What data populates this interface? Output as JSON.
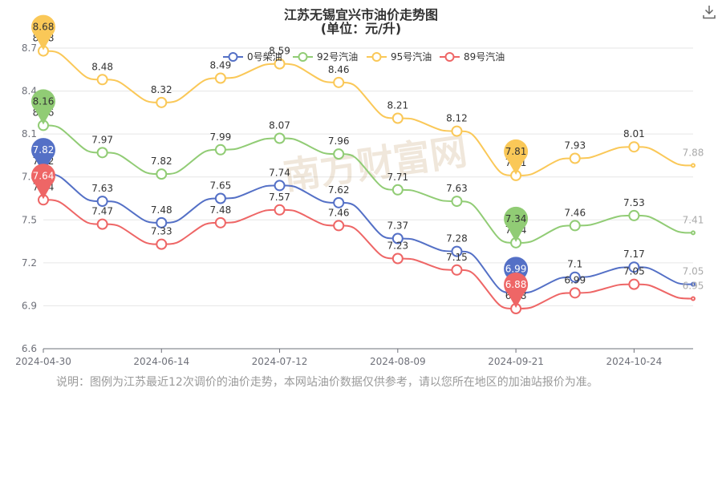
{
  "chart_data": {
    "type": "line",
    "title": "江苏无锡宜兴市油价走势图",
    "subtitle": "(单位：元/升)",
    "ylim": [
      6.6,
      8.7
    ],
    "yticks": [
      "6.6",
      "6.9",
      "7.2",
      "7.5",
      "7.8",
      "8.1",
      "8.4",
      "8.7"
    ],
    "xtick_labels": [
      "2024-04-30",
      "2024-06-14",
      "2024-07-12",
      "2024-08-09",
      "2024-09-21",
      "2024-10-24"
    ],
    "xtick_index": [
      0,
      2,
      4,
      6,
      8,
      10
    ],
    "grid": true,
    "legend_position": "top",
    "series": [
      {
        "name": "0号柴油",
        "color": "#5470c6",
        "values": [
          7.82,
          7.63,
          7.48,
          7.65,
          7.74,
          7.62,
          7.37,
          7.28,
          6.99,
          7.1,
          7.17,
          7.05
        ],
        "max": 7.82,
        "min": 6.99
      },
      {
        "name": "92号汽油",
        "color": "#91cc75",
        "values": [
          8.16,
          7.97,
          7.82,
          7.99,
          8.07,
          7.96,
          7.71,
          7.63,
          7.34,
          7.46,
          7.53,
          7.41
        ],
        "max": 8.16,
        "min": 7.34
      },
      {
        "name": "95号汽油",
        "color": "#fac858",
        "values": [
          8.68,
          8.48,
          8.32,
          8.49,
          8.59,
          8.46,
          8.21,
          8.12,
          7.81,
          7.93,
          8.01,
          7.88
        ],
        "max": 8.68,
        "min": 7.81
      },
      {
        "name": "89号汽油",
        "color": "#ee6666",
        "values": [
          7.64,
          7.47,
          7.33,
          7.48,
          7.57,
          7.46,
          7.23,
          7.15,
          6.88,
          6.99,
          7.05,
          6.95
        ],
        "max": 7.64,
        "min": 6.88
      }
    ]
  },
  "watermark": "南方财富网",
  "icons": {
    "download": "download-icon"
  },
  "note": "说明：图例为江苏最近12次调价的油价走势，本网站油价数据仅供参考，请以您所在地区的加油站报价为准。"
}
